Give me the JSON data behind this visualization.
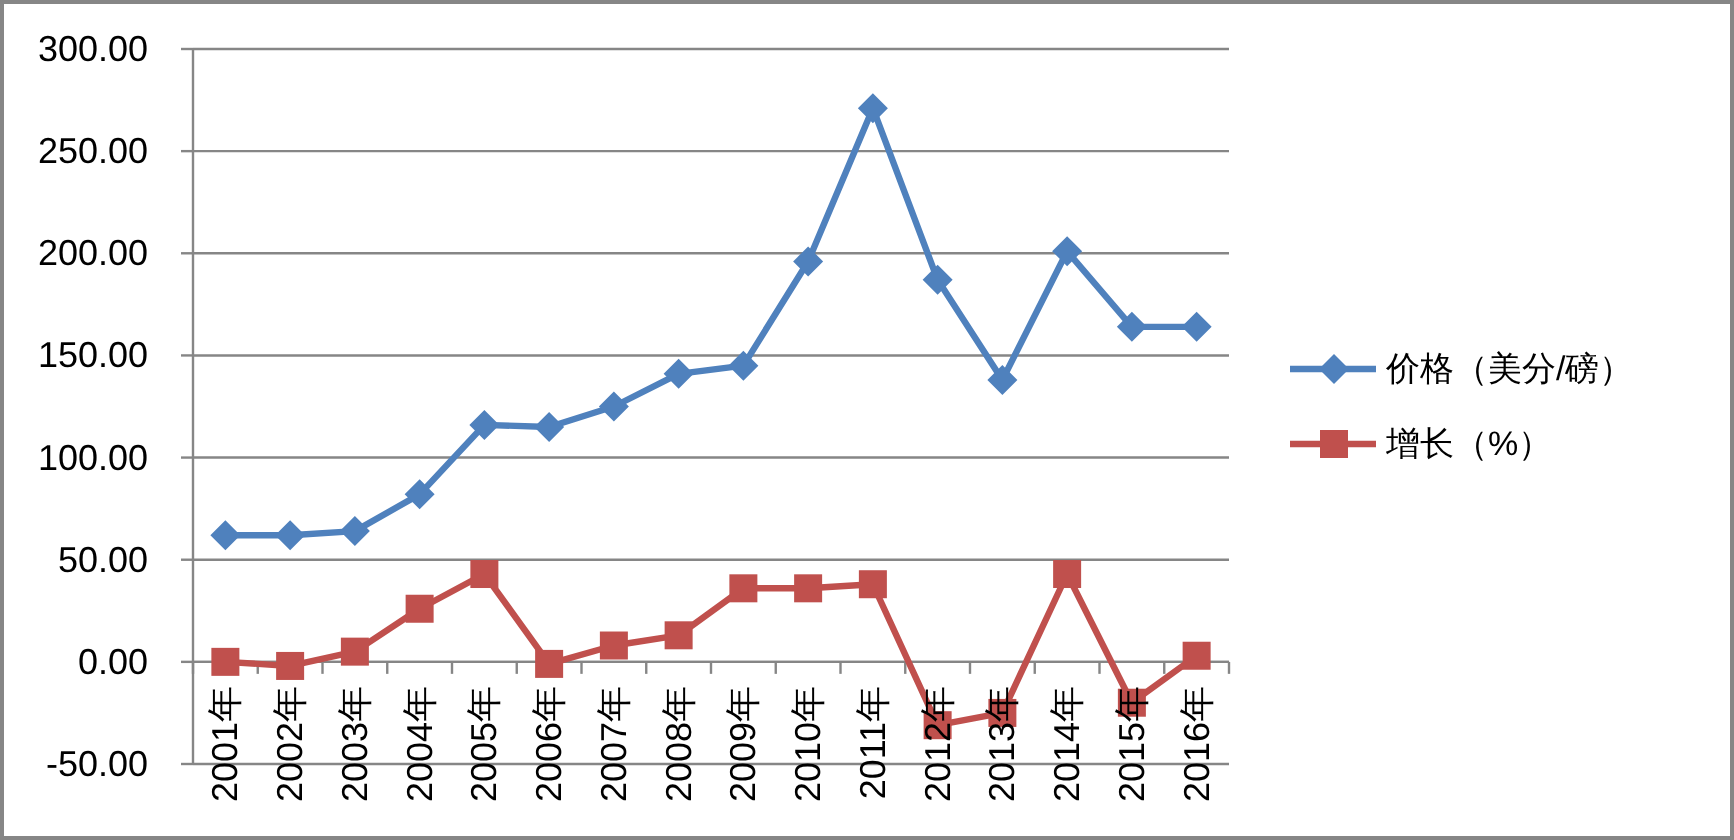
{
  "chart_data": {
    "type": "line",
    "categories": [
      "2001年",
      "2002年",
      "2003年",
      "2004年",
      "2005年",
      "2006年",
      "2007年",
      "2008年",
      "2009年",
      "2010年",
      "2011年",
      "2012年",
      "2013年",
      "2014年",
      "2015年",
      "2016年"
    ],
    "series": [
      {
        "name": "价格（美分/磅）",
        "color": "#4f81bd",
        "marker": "diamond",
        "values": [
          62,
          62,
          64,
          82,
          116,
          115,
          125,
          141,
          145,
          196,
          271,
          187,
          138,
          201,
          164,
          164
        ]
      },
      {
        "name": "增长（%）",
        "color": "#c0504d",
        "marker": "square",
        "values": [
          0,
          -2,
          5,
          26,
          43,
          -1,
          8,
          13,
          36,
          36,
          38,
          -31,
          -25,
          43,
          -20,
          3
        ]
      }
    ],
    "ylim": [
      -50,
      300
    ],
    "yticks": [
      {
        "value": -50,
        "label": "-50.00"
      },
      {
        "value": 0,
        "label": "0.00"
      },
      {
        "value": 50,
        "label": "50.00"
      },
      {
        "value": 100,
        "label": "100.00"
      },
      {
        "value": 150,
        "label": "150.00"
      },
      {
        "value": 200,
        "label": "200.00"
      },
      {
        "value": 250,
        "label": "250.00"
      },
      {
        "value": 300,
        "label": "300.00"
      }
    ],
    "grid": "y",
    "legend": "right",
    "line_style": "solid"
  }
}
